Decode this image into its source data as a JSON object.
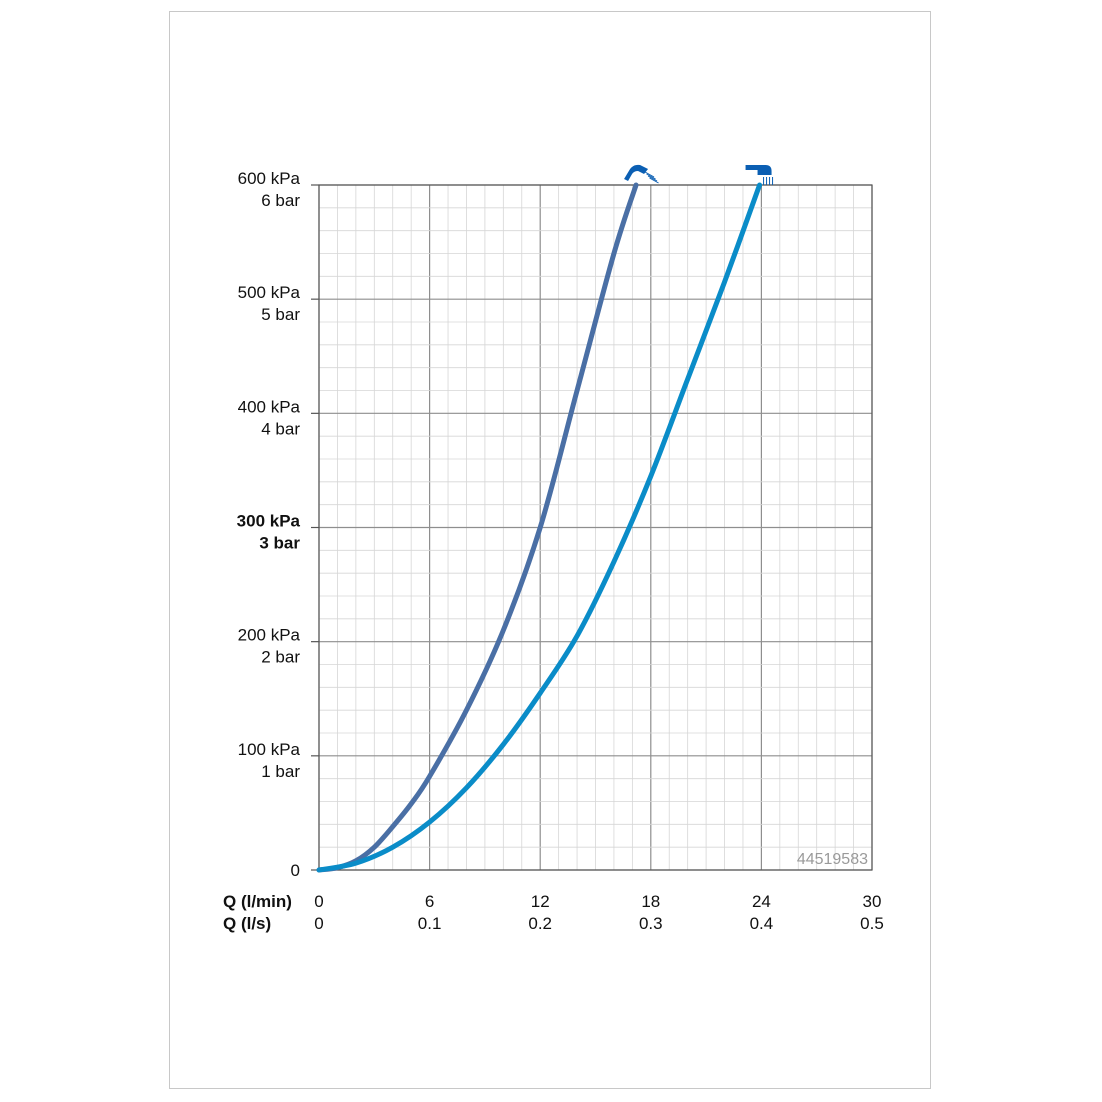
{
  "chart_data": {
    "type": "line",
    "x_unit_rows": [
      {
        "label": "Q (l/min)",
        "ticks": [
          "0",
          "6",
          "12",
          "18",
          "24",
          "30"
        ]
      },
      {
        "label": "Q (l/s)",
        "ticks": [
          "0",
          "0.1",
          "0.2",
          "0.3",
          "0.4",
          "0.5"
        ]
      }
    ],
    "xlim": [
      0,
      30
    ],
    "ylim": [
      0,
      600
    ],
    "y_ticks": [
      {
        "value": 0,
        "kpa": "0",
        "bar": "",
        "bold": false
      },
      {
        "value": 100,
        "kpa": "100 kPa",
        "bar": "1 bar",
        "bold": false
      },
      {
        "value": 200,
        "kpa": "200 kPa",
        "bar": "2 bar",
        "bold": false
      },
      {
        "value": 300,
        "kpa": "300 kPa",
        "bar": "3 bar",
        "bold": true
      },
      {
        "value": 400,
        "kpa": "400 kPa",
        "bar": "4 bar",
        "bold": false
      },
      {
        "value": 500,
        "kpa": "500 kPa",
        "bar": "5 bar",
        "bold": false
      },
      {
        "value": 600,
        "kpa": "600 kPa",
        "bar": "6 bar",
        "bold": false
      }
    ],
    "grid": true,
    "series": [
      {
        "icon": "angled-shower-head-icon",
        "color": "#4a6fa5",
        "x": [
          0,
          1,
          2,
          3,
          4,
          5,
          6,
          8,
          10,
          12,
          14,
          16,
          17.2
        ],
        "y": [
          0,
          2,
          8,
          20,
          38,
          58,
          82,
          140,
          210,
          300,
          420,
          540,
          600
        ]
      },
      {
        "icon": "hand-shower-head-icon",
        "color": "#0a8cc8",
        "x": [
          0,
          2,
          4,
          6,
          8,
          10,
          12,
          14,
          16,
          18,
          20,
          22,
          23.9
        ],
        "y": [
          0,
          6,
          20,
          42,
          72,
          110,
          155,
          205,
          270,
          345,
          430,
          515,
          600
        ]
      }
    ],
    "annotation": "44519583"
  },
  "colors": {
    "grid_major": "#8e8e8e",
    "grid_minor": "#d6d6d6",
    "axis": "#555555"
  }
}
